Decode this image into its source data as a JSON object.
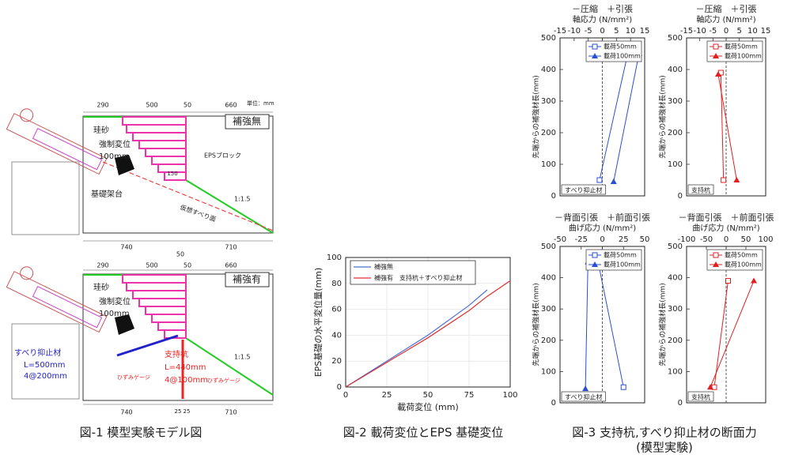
{
  "figure1": {
    "top_labels": [
      "290",
      "500",
      "50",
      "660",
      "単位：mm",
      "補強無",
      "珪砂",
      "強制変位",
      "100mm",
      "EPSブロック",
      "基礎架台",
      "仮想すべり面",
      "1:1.5",
      "740",
      "50",
      "710",
      "150"
    ],
    "bottom_labels": [
      "290",
      "500",
      "50",
      "660",
      "補強有",
      "珪砂",
      "強制変位",
      "100mm",
      "すべり抑止材",
      "L=500mm",
      "4@200mm",
      "支持杭",
      "L=440mm",
      "4@100mm",
      "ひずみゲージ",
      "ひずみゲージ",
      "1:1.5",
      "740",
      "25",
      "25",
      "710"
    ]
  },
  "chart_data": [
    {
      "type": "line",
      "xlabel": "載荷変位 (mm)",
      "ylabel": "EPS基礎の水平変位量(mm)",
      "x": [
        0,
        25,
        50,
        75,
        86,
        100
      ],
      "series": [
        {
          "name": "補強無",
          "color": "#4a6fd8",
          "values": [
            0,
            20,
            40,
            63,
            75,
            null
          ]
        },
        {
          "name": "補強有　支持杭＋すべり抑止材",
          "color": "#e03030",
          "values": [
            0,
            19,
            38,
            59,
            70,
            82
          ]
        }
      ],
      "xlim": [
        0,
        100
      ],
      "xticks": [
        0,
        25,
        50,
        75,
        100
      ],
      "ylim": [
        0,
        100
      ],
      "yticks": [
        0,
        20,
        40,
        60,
        80,
        100
      ],
      "grid": true,
      "legend": "upper left"
    },
    {
      "type": "profile",
      "title": "－圧縮　＋引張",
      "subtitle": "軸応力 (N/mm²)",
      "ylabel": "先端からの補強材長(mm)",
      "annotation": "すべり抑止材",
      "series": [
        {
          "name": "載荷50mm",
          "color": "#2a4fd0",
          "marker": "square",
          "x": [
            9,
            -1
          ],
          "y": [
            450,
            50
          ]
        },
        {
          "name": "載荷100mm",
          "color": "#2a4fd0",
          "marker": "triangle",
          "x": [
            13,
            4
          ],
          "y": [
            450,
            45
          ]
        }
      ],
      "xlim": [
        -15,
        15
      ],
      "xticks": [
        -15,
        -10,
        -5,
        0,
        5,
        10,
        15
      ],
      "ylim": [
        0,
        500
      ],
      "yticks": [
        0,
        100,
        200,
        300,
        400,
        500
      ],
      "legend": "upper right"
    },
    {
      "type": "profile",
      "title": "－圧縮　＋引張",
      "subtitle": "軸応力 (N/mm²)",
      "ylabel": "先端からの補強材長(mm)",
      "annotation": "支持杭",
      "series": [
        {
          "name": "載荷50mm",
          "color": "#e02020",
          "marker": "square",
          "x": [
            -2,
            -1
          ],
          "y": [
            390,
            50
          ]
        },
        {
          "name": "載荷100mm",
          "color": "#e02020",
          "marker": "triangle",
          "x": [
            -3,
            4
          ],
          "y": [
            385,
            50
          ]
        }
      ],
      "xlim": [
        -15,
        15
      ],
      "xticks": [
        -15,
        -10,
        -5,
        0,
        5,
        10,
        15
      ],
      "ylim": [
        0,
        500
      ],
      "yticks": [
        0,
        100,
        200,
        300,
        400,
        500
      ],
      "legend": "upper right"
    },
    {
      "type": "profile",
      "title": "－背面引張　＋前面引張",
      "subtitle": "曲げ応力 (N/mm²)",
      "ylabel": "先端からの補強材長(mm)",
      "annotation": "すべり抑止材",
      "series": [
        {
          "name": "載荷50mm",
          "color": "#2a4fd0",
          "marker": "square",
          "x": [
            -5,
            25
          ],
          "y": [
            450,
            50
          ]
        },
        {
          "name": "載荷100mm",
          "color": "#2a4fd0",
          "marker": "triangle",
          "x": [
            -17,
            -20
          ],
          "y": [
            450,
            45
          ]
        }
      ],
      "xlim": [
        -50,
        50
      ],
      "xticks": [
        -50,
        -25,
        0,
        25,
        50
      ],
      "ylim": [
        0,
        500
      ],
      "yticks": [
        0,
        100,
        200,
        300,
        400,
        500
      ],
      "legend": "upper right"
    },
    {
      "type": "profile",
      "title": "－背面引張　＋前面引張",
      "subtitle": "曲げ応力 (N/mm²)",
      "ylabel": "先端からの補強材長(mm)",
      "annotation": "支持杭",
      "series": [
        {
          "name": "載荷50mm",
          "color": "#e02020",
          "marker": "square",
          "x": [
            5,
            -30
          ],
          "y": [
            390,
            50
          ]
        },
        {
          "name": "載荷100mm",
          "color": "#e02020",
          "marker": "triangle",
          "x": [
            70,
            -40
          ],
          "y": [
            390,
            50
          ]
        }
      ],
      "xlim": [
        -100,
        100
      ],
      "xticks": [
        -100,
        -50,
        0,
        50,
        100
      ],
      "ylim": [
        0,
        500
      ],
      "yticks": [
        0,
        100,
        200,
        300,
        400,
        500
      ],
      "legend": "upper right"
    }
  ],
  "captions": [
    "図-1 模型実験モデル図",
    "図-2 載荷変位とEPS 基礎変位",
    "図-3 支持杭,すべり抑止材の断面力",
    "(模型実験)"
  ]
}
